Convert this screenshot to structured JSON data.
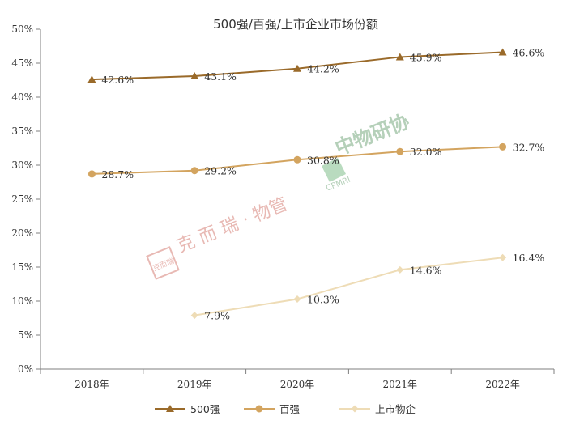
{
  "chart_data": {
    "type": "line",
    "title": "500强/百强/上市企业市场份额",
    "categories": [
      "2018年",
      "2019年",
      "2020年",
      "2021年",
      "2022年"
    ],
    "ylim": [
      0,
      50
    ],
    "yticks": [
      "0%",
      "5%",
      "10%",
      "15%",
      "20%",
      "25%",
      "30%",
      "35%",
      "40%",
      "45%",
      "50%"
    ],
    "grid": false,
    "legend_position": "bottom",
    "series": [
      {
        "name": "500强",
        "color": "#9a6a2a",
        "marker": "triangle",
        "values": [
          42.6,
          43.1,
          44.2,
          45.9,
          46.6
        ],
        "labels": [
          "42.6%",
          "43.1%",
          "44.2%",
          "45.9%",
          "46.6%"
        ]
      },
      {
        "name": "百强",
        "color": "#d3a45f",
        "marker": "circle",
        "values": [
          28.7,
          29.2,
          30.8,
          32.0,
          32.7
        ],
        "labels": [
          "28.7%",
          "29.2%",
          "30.8%",
          "32.0%",
          "32.7%"
        ]
      },
      {
        "name": "上市物企",
        "color": "#eedcb6",
        "marker": "diamond",
        "values": [
          null,
          7.9,
          10.3,
          14.6,
          16.4
        ],
        "labels": [
          null,
          "7.9%",
          "10.3%",
          "14.6%",
          "16.4%"
        ]
      }
    ]
  },
  "watermarks": {
    "left_seal": "克而瑞",
    "left_text": "克 而 瑞 · 物管",
    "right_text": "中物研协",
    "right_sub": "CPMRI"
  }
}
